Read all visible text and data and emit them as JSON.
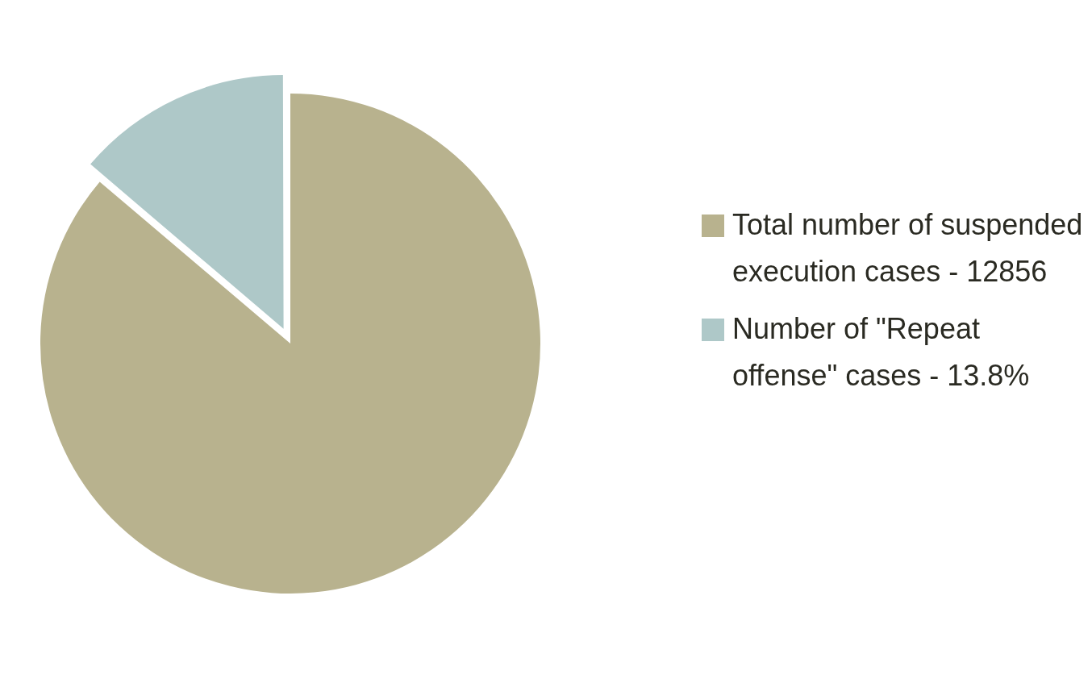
{
  "chart_data": {
    "type": "pie",
    "categories": [
      "Total number of suspended execution cases - 12856",
      "Number of \"Repeat offense\" cases - 13.8%"
    ],
    "values": [
      86.2,
      13.8
    ],
    "colors": [
      "#b8b28e",
      "#aec8c8"
    ],
    "legend": "right"
  }
}
